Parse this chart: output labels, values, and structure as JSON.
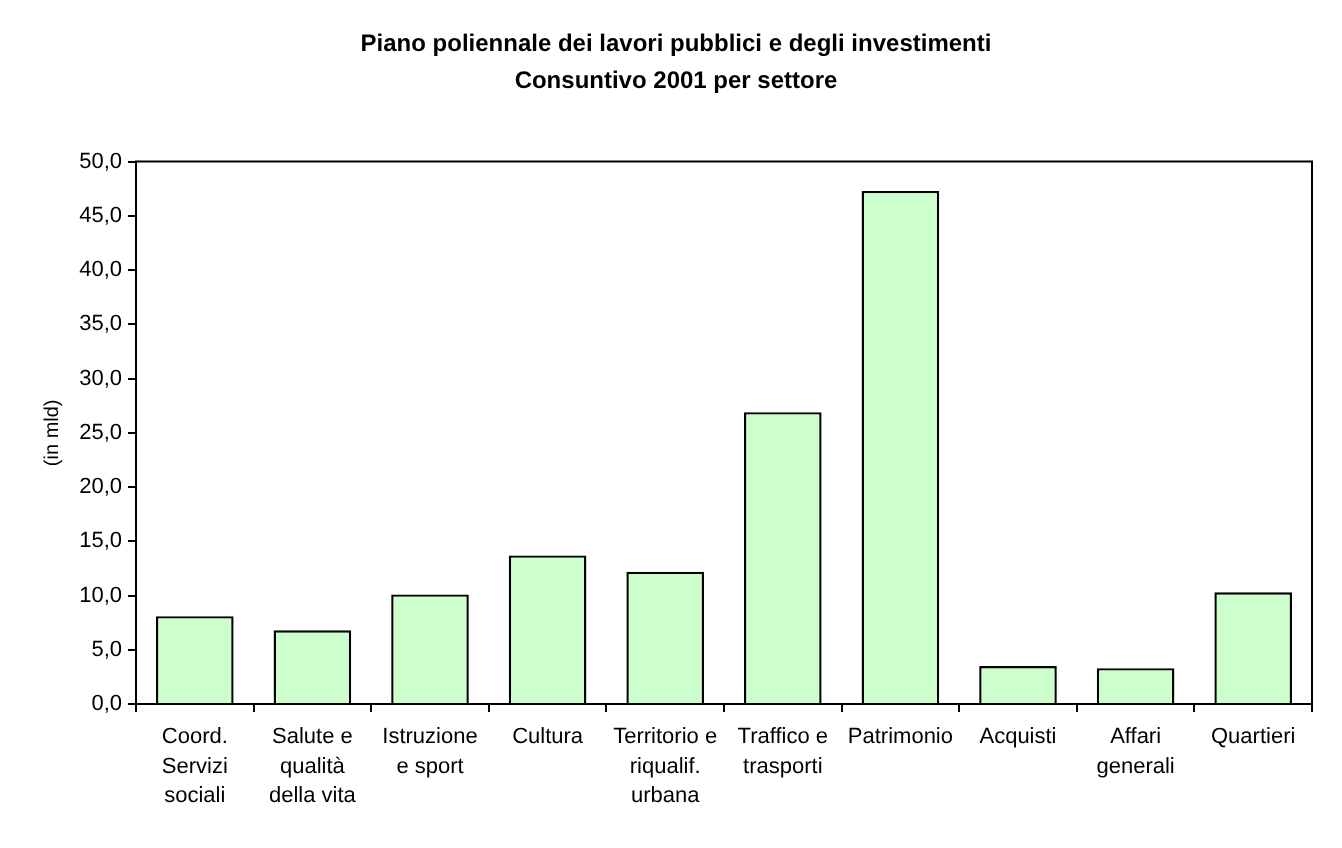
{
  "chart_data": {
    "type": "bar",
    "title": "Piano poliennale dei lavori pubblici e degli investimenti",
    "subtitle": "Consuntivo 2001 per settore",
    "ylabel": "(in mld)",
    "categories": [
      "Coord. Servizi sociali",
      "Salute e qualità della vita",
      "Istruzione e sport",
      "Cultura",
      "Territorio e riqualif. urbana",
      "Traffico e trasporti",
      "Patrimonio",
      "Acquisti",
      "Affari generali",
      "Quartieri"
    ],
    "values": [
      8.1,
      6.8,
      10.1,
      13.7,
      12.2,
      26.9,
      47.3,
      3.5,
      3.3,
      10.3
    ],
    "color": "#ccffcc",
    "ylim": [
      0,
      50
    ],
    "yticks": [
      {
        "value": 0,
        "label": "0,0"
      },
      {
        "value": 5,
        "label": "5,0"
      },
      {
        "value": 10,
        "label": "10,0"
      },
      {
        "value": 15,
        "label": "15,0"
      },
      {
        "value": 20,
        "label": "20,0"
      },
      {
        "value": 25,
        "label": "25,0"
      },
      {
        "value": 30,
        "label": "30,0"
      },
      {
        "value": 35,
        "label": "35,0"
      },
      {
        "value": 40,
        "label": "40,0"
      },
      {
        "value": 45,
        "label": "45,0"
      },
      {
        "value": 50,
        "label": "50,0"
      }
    ]
  }
}
